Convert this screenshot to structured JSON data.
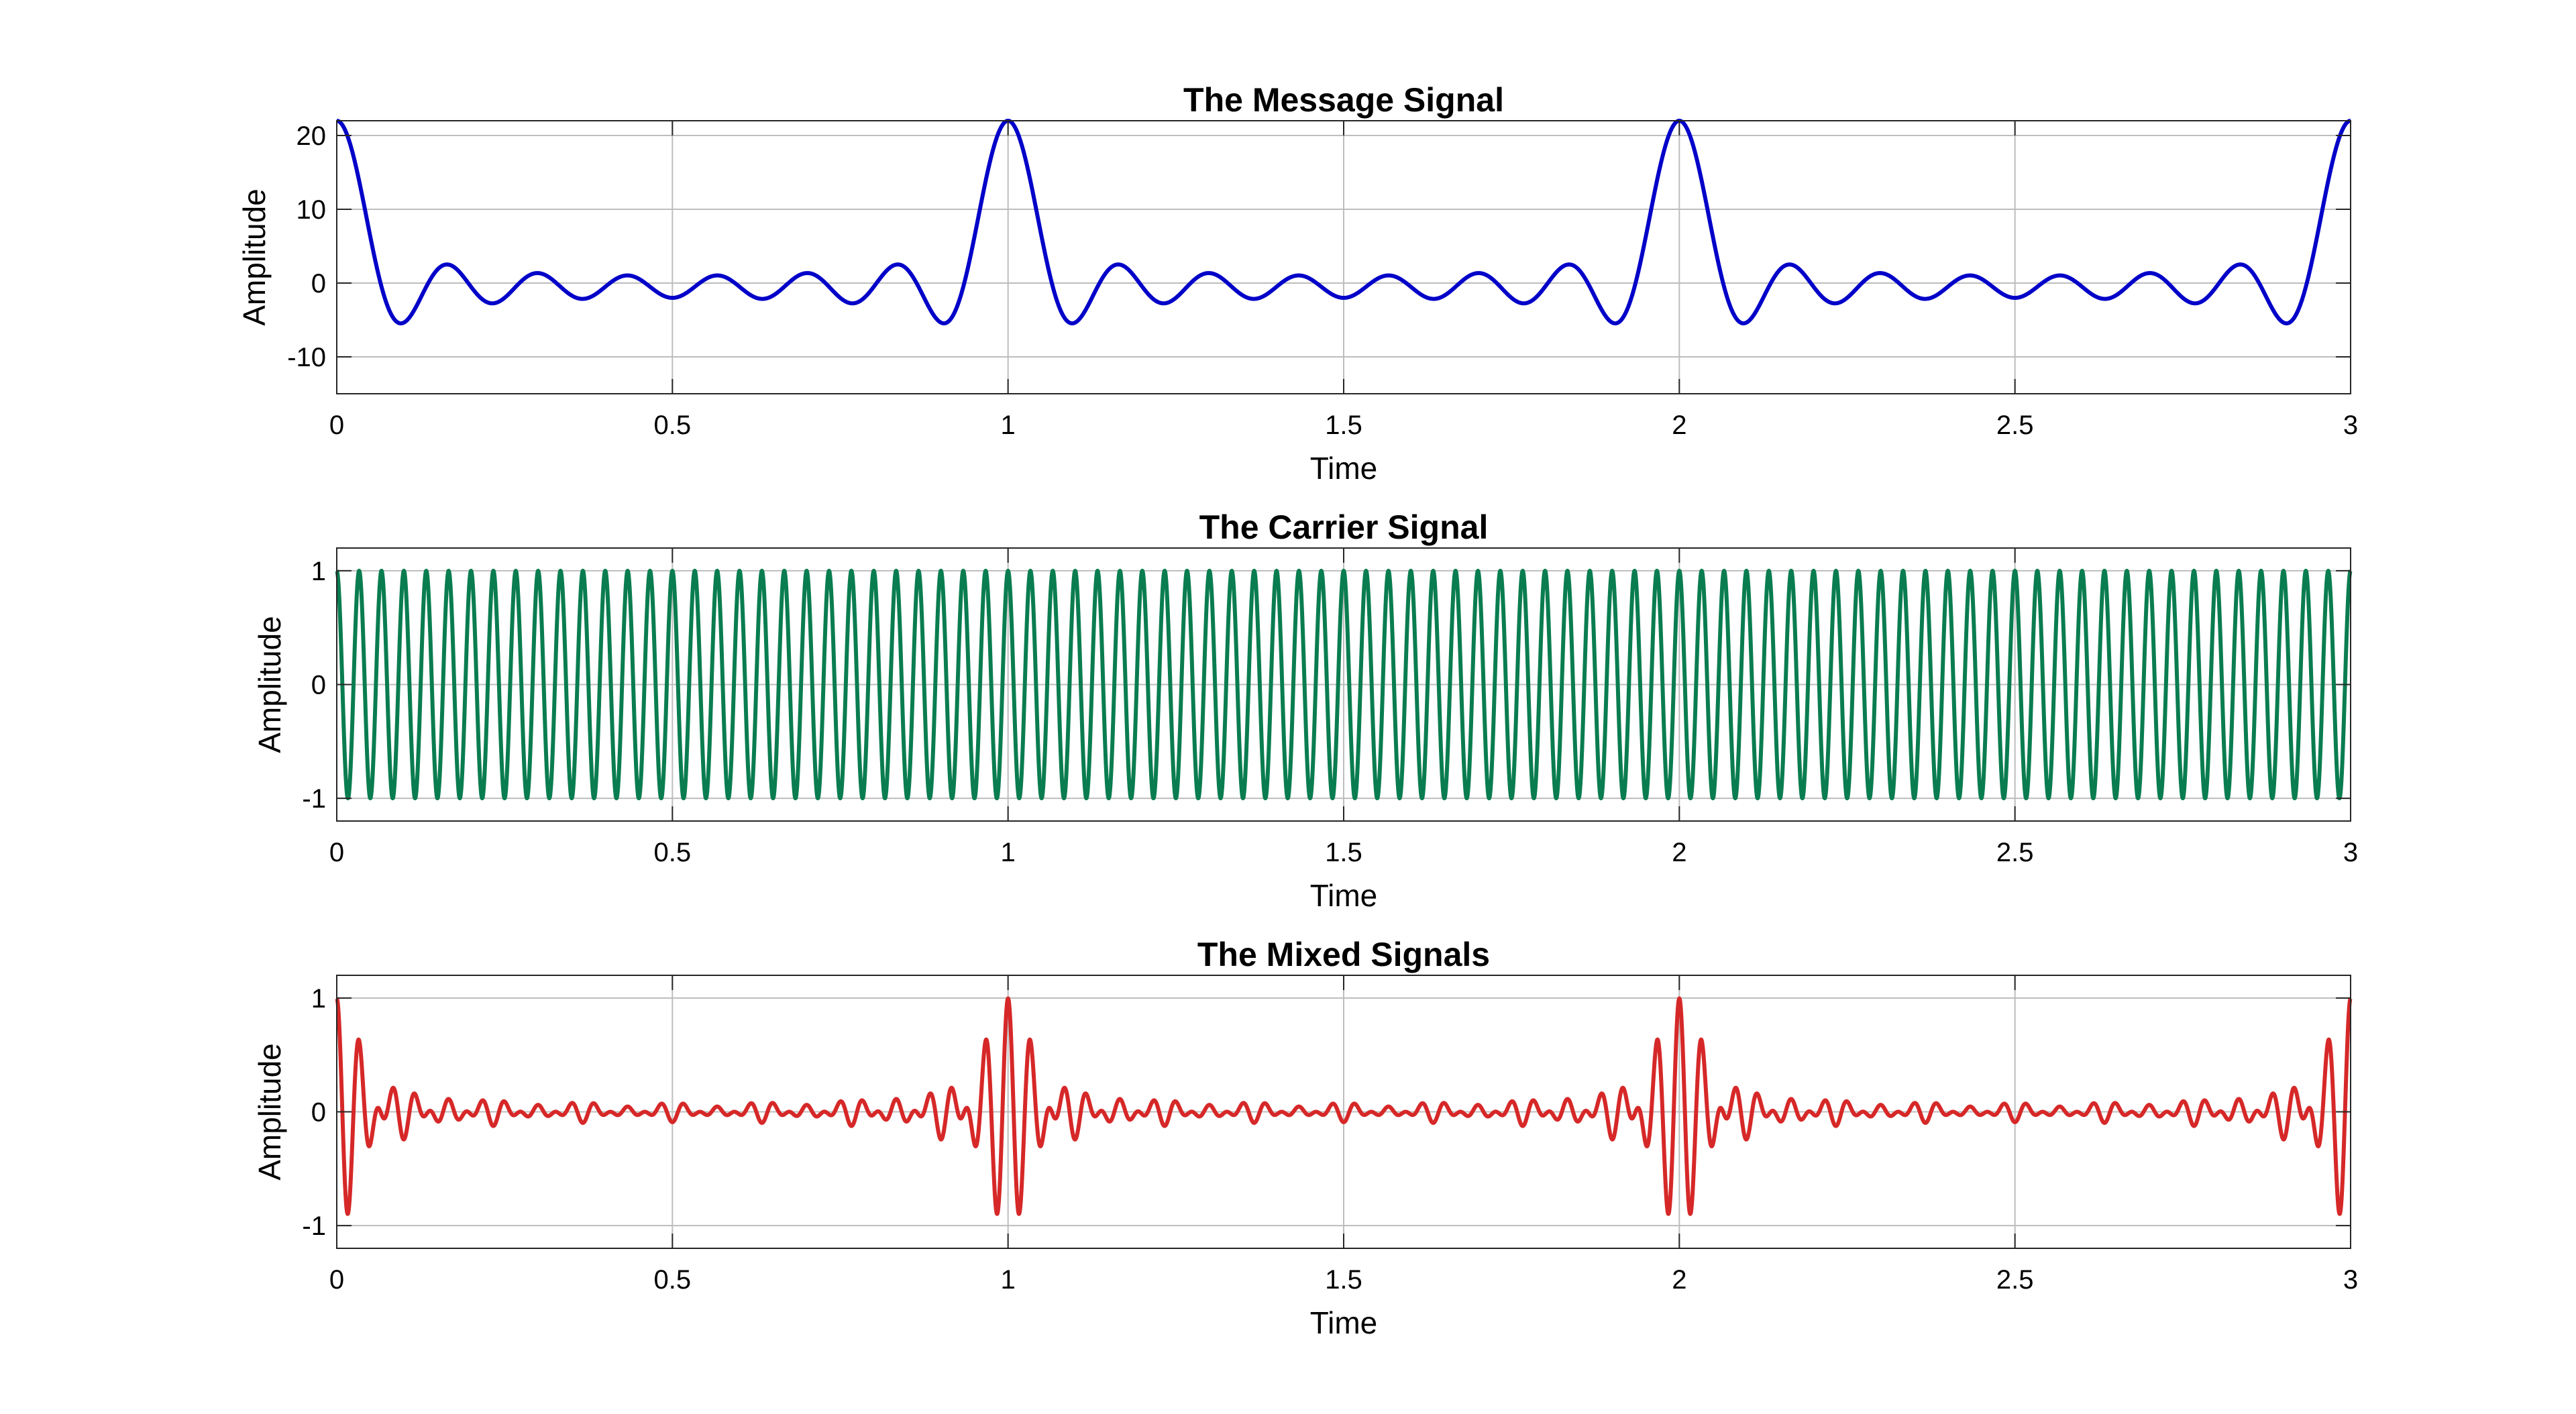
{
  "colors": {
    "background": "#ffffff",
    "grid": "#bdbdbd",
    "axis": "#262626"
  },
  "chart_data": [
    {
      "type": "line",
      "title": "The Message Signal",
      "xlabel": "Time",
      "ylabel": "Amplitude",
      "xlim": [
        0,
        3
      ],
      "ylim": [
        -15,
        22
      ],
      "xticks": [
        0,
        0.5,
        1,
        1.5,
        2,
        2.5,
        3
      ],
      "xtick_labels": [
        "0",
        "0.5",
        "1",
        "1.5",
        "2",
        "2.5",
        "3"
      ],
      "yticks": [
        -10,
        0,
        10,
        20
      ],
      "ytick_labels": [
        "-10",
        "0",
        "10",
        "20"
      ],
      "grid": true,
      "series": [
        {
          "color": "#0000c8",
          "formula": "sum of cosines with period 1: 3*cos(2*pi*k*t) for k=1..7 plus 1",
          "samples_per_unit": 700,
          "components": [
            {
              "amplitude": 3,
              "frequency": 1
            },
            {
              "amplitude": 3,
              "frequency": 2
            },
            {
              "amplitude": 3,
              "frequency": 3
            },
            {
              "amplitude": 3,
              "frequency": 4
            },
            {
              "amplitude": 3,
              "frequency": 5
            },
            {
              "amplitude": 3,
              "frequency": 6
            },
            {
              "amplitude": 3,
              "frequency": 7
            }
          ],
          "offset": 1
        }
      ]
    },
    {
      "type": "line",
      "title": "The Carrier Signal",
      "xlabel": "Time",
      "ylabel": "Amplitude",
      "xlim": [
        0,
        3
      ],
      "ylim": [
        -1.2,
        1.2
      ],
      "xticks": [
        0,
        0.5,
        1,
        1.5,
        2,
        2.5,
        3
      ],
      "xtick_labels": [
        "0",
        "0.5",
        "1",
        "1.5",
        "2",
        "2.5",
        "3"
      ],
      "yticks": [
        -1,
        0,
        1
      ],
      "ytick_labels": [
        "-1",
        "0",
        "1"
      ],
      "grid": true,
      "series": [
        {
          "color": "#0a7d50",
          "samples_per_unit": 2400,
          "components": [
            {
              "amplitude": 1,
              "frequency": 30
            }
          ],
          "offset": 0
        }
      ]
    },
    {
      "type": "line",
      "title": "The Mixed Signals",
      "xlabel": "Time",
      "ylabel": "Amplitude",
      "xlim": [
        0,
        3
      ],
      "ylim": [
        -1.2,
        1.2
      ],
      "xticks": [
        0,
        0.5,
        1,
        1.5,
        2,
        2.5,
        3
      ],
      "xtick_labels": [
        "0",
        "0.5",
        "1",
        "1.5",
        "2",
        "2.5",
        "3"
      ],
      "yticks": [
        -1,
        0,
        1
      ],
      "ytick_labels": [
        "-1",
        "0",
        "1"
      ],
      "grid": true,
      "series": [
        {
          "color": "#d62828",
          "samples_per_unit": 2400,
          "components": [
            {
              "amplitude": 0.136,
              "frequency": 1
            },
            {
              "amplitude": 0.136,
              "frequency": 2
            },
            {
              "amplitude": 0.136,
              "frequency": 3
            },
            {
              "amplitude": 0.136,
              "frequency": 4
            },
            {
              "amplitude": 0.136,
              "frequency": 5
            },
            {
              "amplitude": 0.136,
              "frequency": 6
            },
            {
              "amplitude": 0.136,
              "frequency": 7
            }
          ],
          "offset": 0.045,
          "carrier_frequency": 30
        }
      ]
    }
  ]
}
